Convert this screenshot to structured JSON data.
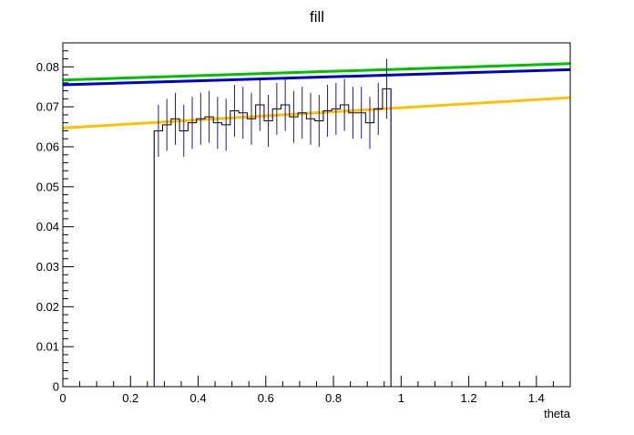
{
  "chart_data": {
    "type": "line",
    "title": "fill",
    "xlabel": "theta",
    "ylabel": "",
    "xlim": [
      0,
      1.5
    ],
    "ylim": [
      0,
      0.086
    ],
    "x_ticks": [
      0,
      0.2,
      0.4,
      0.6,
      0.8,
      1,
      1.2,
      1.4
    ],
    "x_tick_labels": [
      "0",
      "0.2",
      "0.4",
      "0.6",
      "0.8",
      "1",
      "1.2",
      "1.4"
    ],
    "y_ticks": [
      0,
      0.01,
      0.02,
      0.03,
      0.04,
      0.05,
      0.06,
      0.07,
      0.08
    ],
    "y_tick_labels": [
      "0",
      "0.01",
      "0.02",
      "0.03",
      "0.04",
      "0.05",
      "0.06",
      "0.07",
      "0.08"
    ],
    "grid": false,
    "histogram": {
      "color": "#1a1a8c",
      "bin_width": 0.025,
      "bin_start": 0.27,
      "values": [
        0.064,
        0.0655,
        0.067,
        0.064,
        0.066,
        0.067,
        0.0675,
        0.066,
        0.0655,
        0.069,
        0.0685,
        0.067,
        0.0705,
        0.0665,
        0.0695,
        0.0705,
        0.0675,
        0.0685,
        0.067,
        0.0665,
        0.069,
        0.0695,
        0.0705,
        0.0685,
        0.0685,
        0.066,
        0.0695,
        0.0745
      ],
      "errors": [
        0.0065,
        0.0065,
        0.0065,
        0.0065,
        0.0065,
        0.0065,
        0.0065,
        0.0065,
        0.0065,
        0.0065,
        0.0065,
        0.0065,
        0.0065,
        0.0065,
        0.0065,
        0.0065,
        0.0065,
        0.0065,
        0.0065,
        0.0065,
        0.0065,
        0.0065,
        0.0065,
        0.0065,
        0.0065,
        0.0065,
        0.0065,
        0.0075
      ]
    },
    "series": [
      {
        "color": "#00c000",
        "x": [
          0,
          1.5
        ],
        "y": [
          0.0767,
          0.0808
        ]
      },
      {
        "color": "#0000c8",
        "x": [
          0,
          1.5
        ],
        "y": [
          0.0755,
          0.0793
        ]
      },
      {
        "color": "#ffc000",
        "x": [
          0,
          1.5
        ],
        "y": [
          0.0647,
          0.0723
        ]
      }
    ]
  }
}
